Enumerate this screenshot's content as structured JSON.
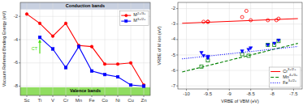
{
  "chart_data": [
    {
      "type": "line",
      "categories": [
        "Sc",
        "Ti",
        "V",
        "Cr",
        "Mn",
        "Fe",
        "Co",
        "Ni",
        "Cu",
        "Zn"
      ],
      "series": [
        {
          "name": "M2+/3+",
          "color": "red",
          "marker": "circle",
          "line_style": "solid",
          "values": [
            -1.8,
            -2.6,
            -3.7,
            -2.6,
            -4.5,
            -4.6,
            -6.1,
            -6.1,
            -6.0,
            -7.9
          ]
        },
        {
          "name": "M3+/2+",
          "color": "blue",
          "marker": "square",
          "line_style": "solid",
          "values": [
            null,
            -3.8,
            -4.8,
            -6.4,
            -4.6,
            -6.7,
            -7.0,
            -7.2,
            -7.9,
            -8.0
          ]
        }
      ],
      "ylabel": "Vacuum Referred Binding Energy (eV)",
      "ylim": [
        -8.8,
        -0.8
      ],
      "yticks": [
        -8,
        -6,
        -4,
        -2
      ],
      "grid": true,
      "legend": "upper right",
      "bands": [
        {
          "label": "Conduction bands",
          "from": -1.4,
          "to": -0.8,
          "color": "#c8d0e0"
        },
        {
          "label": "Valence bands",
          "from": -8.8,
          "to": -8.1,
          "color": "#90dd60"
        }
      ],
      "annotations": [
        {
          "text": "CT",
          "x": "Ti",
          "y": -3.8,
          "color": "#44dd00"
        }
      ]
    },
    {
      "type": "scatter",
      "series": [
        {
          "name": "Cr3+/2+",
          "type": "line",
          "color": "red",
          "line_style": "solid",
          "x": [
            -10.1,
            -7.4
          ],
          "values": [
            -2.95,
            -2.65
          ]
        },
        {
          "type": "scatter",
          "color": "red",
          "marker": "circle-open",
          "x": [
            -9.6,
            -9.5,
            -9.5,
            -8.7,
            -8.5,
            -8.1,
            -7.9,
            -7.85,
            -8.6
          ],
          "values": [
            -2.85,
            -2.85,
            -2.85,
            -2.55,
            -2.75,
            -2.75,
            -2.75,
            -2.65,
            -2.15
          ]
        },
        {
          "name": "Mn4+/3+",
          "type": "line",
          "color": "green",
          "line_style": "dashed",
          "x": [
            -10.1,
            -7.4
          ],
          "values": [
            -6.1,
            -4.25
          ]
        },
        {
          "type": "scatter",
          "color": "green",
          "marker": "square-open",
          "x": [
            -9.65,
            -9.5,
            -8.7,
            -8.55,
            -8.1,
            -7.95,
            -7.85
          ],
          "values": [
            -5.75,
            -5.35,
            -4.95,
            -5.05,
            -4.35,
            -4.35,
            -4.1
          ]
        },
        {
          "name": "Fe3+/2+",
          "type": "line",
          "color": "blue",
          "line_style": "dotted",
          "x": [
            -10.1,
            -7.4
          ],
          "values": [
            -5.25,
            -4.45
          ]
        },
        {
          "type": "scatter",
          "color": "blue",
          "marker": "triangle-down",
          "x": [
            -9.65,
            -9.6,
            -9.5,
            -9.5,
            -8.7,
            -8.55,
            -8.5,
            -8.1,
            -7.95,
            -7.85
          ],
          "values": [
            -4.85,
            -5.05,
            -5.1,
            -5.2,
            -4.75,
            -4.65,
            -4.55,
            -4.35,
            -4.25,
            -4.05
          ]
        }
      ],
      "xlabel": "VRBE of VBM (eV)",
      "ylabel": "VRBE of M ion (eV)",
      "xlim": [
        -10.2,
        -7.3
      ],
      "ylim": [
        -7.2,
        -1.6
      ],
      "xticks": [
        -10,
        -9.5,
        -9,
        -8.5,
        -8,
        -7.5
      ],
      "yticks": [
        -7,
        -6,
        -5,
        -4,
        -3,
        -2
      ],
      "grid": true,
      "legend": "lower right"
    }
  ]
}
